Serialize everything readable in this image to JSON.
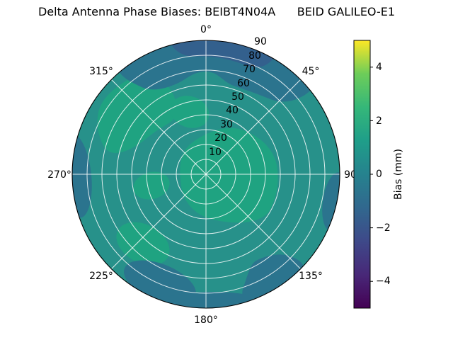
{
  "title": "Delta Antenna Phase Biases: BEIBT4N04A      BEID GALILEO-E1",
  "chart_data": {
    "type": "polar_contour",
    "title": "Delta Antenna Phase Biases: BEIBT4N04A      BEID GALILEO-E1",
    "station_antenna": "BEIBT4N04A",
    "system_signal": "BEID GALILEO-E1",
    "angular_tick_labels": [
      "0°",
      "45°",
      "90",
      "135°",
      "180°",
      "225°",
      "270°",
      "315°"
    ],
    "radial_tick_labels": [
      "10",
      "20",
      "30",
      "40",
      "50",
      "60",
      "70",
      "80",
      "90"
    ],
    "radial_range": [
      0,
      90
    ],
    "radial_label_angle_deg": 22.5,
    "grid": true,
    "colorbar": {
      "label": "Bias (mm)",
      "tick_labels": [
        "4",
        "2",
        "0",
        "−2",
        "−4"
      ],
      "ticks": [
        4,
        2,
        0,
        -2,
        -4
      ],
      "range": [
        -5,
        5
      ],
      "colormap": "viridis",
      "gradient": [
        {
          "offset": "0%",
          "color": "#440154"
        },
        {
          "offset": "12.5%",
          "color": "#482878"
        },
        {
          "offset": "25%",
          "color": "#3e4989"
        },
        {
          "offset": "37.5%",
          "color": "#31688e"
        },
        {
          "offset": "50%",
          "color": "#26828e"
        },
        {
          "offset": "62.5%",
          "color": "#1f9e89"
        },
        {
          "offset": "75%",
          "color": "#35b779"
        },
        {
          "offset": "87.5%",
          "color": "#6dcd59"
        },
        {
          "offset": "100%",
          "color": "#fde725"
        }
      ]
    },
    "palette": {
      "base_0_to_1": "#27918a",
      "band_1_to_2": "#1fa381",
      "band_m1_to_0": "#2b748e",
      "band_m2_to_m1": "#33608d"
    },
    "regions_estimate": [
      {
        "azimuth_range_deg": [
          320,
          45
        ],
        "radius_range": [
          65,
          90
        ],
        "bias_mm": -0.5
      },
      {
        "azimuth_range_deg": [
          345,
          30
        ],
        "radius_range": [
          82,
          90
        ],
        "bias_mm": -1.5
      },
      {
        "azimuth_range_deg": [
          285,
          340
        ],
        "radius_range": [
          35,
          85
        ],
        "bias_mm": 1.5
      },
      {
        "azimuth_range_deg": [
          70,
          160
        ],
        "radius_range": [
          5,
          50
        ],
        "bias_mm": 1.5
      },
      {
        "azimuth_range_deg": [
          215,
          245
        ],
        "radius_range": [
          45,
          75
        ],
        "bias_mm": 1.5
      },
      {
        "azimuth_range_deg": [
          130,
          165
        ],
        "radius_range": [
          70,
          90
        ],
        "bias_mm": -0.5
      },
      {
        "azimuth_range_deg": [
          195,
          235
        ],
        "radius_range": [
          70,
          90
        ],
        "bias_mm": -0.5
      },
      {
        "azimuth_range_deg": [
          255,
          290
        ],
        "radius_range": [
          78,
          90
        ],
        "bias_mm": -0.5
      },
      {
        "azimuth_range_deg": [
          95,
          120
        ],
        "radius_range": [
          80,
          90
        ],
        "bias_mm": -0.5
      },
      {
        "background_bias_mm": 0.5
      }
    ]
  }
}
